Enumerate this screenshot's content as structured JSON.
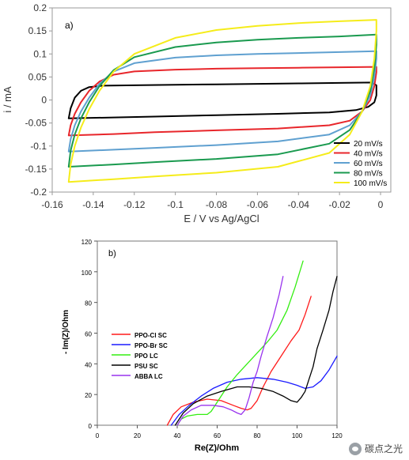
{
  "chart_data": [
    {
      "type": "line",
      "panel_label": "a)",
      "xlabel": "E / V vs Ag/AgCl",
      "ylabel": "i / mA",
      "xlim": [
        -0.16,
        0.005
      ],
      "ylim": [
        -0.2,
        0.2
      ],
      "xticks": [
        -0.16,
        -0.14,
        -0.12,
        -0.1,
        -0.08,
        -0.06,
        -0.04,
        -0.02,
        0
      ],
      "xtick_labels": [
        "-0.16",
        "-0.14",
        "-0.12",
        "-0.1",
        "-0.08",
        "-0.06",
        "-0.04",
        "-0.02",
        "0"
      ],
      "yticks": [
        0.2,
        0.15,
        0.1,
        0.05,
        0,
        -0.05,
        -0.1,
        -0.15,
        -0.2
      ],
      "ytick_labels": [
        "0.2",
        "0.15",
        "0.1",
        "0.05",
        "0",
        "-0.05",
        "-0.1",
        "-0.15",
        "-0.2"
      ],
      "grid": false,
      "legend_position": "bottom-right",
      "series": [
        {
          "name": "20 mV/s",
          "color": "#000000",
          "points": [
            [
              -0.152,
              -0.04
            ],
            [
              -0.151,
              -0.018
            ],
            [
              -0.149,
              0.005
            ],
            [
              -0.146,
              0.02
            ],
            [
              -0.142,
              0.028
            ],
            [
              -0.135,
              0.031
            ],
            [
              -0.12,
              0.032
            ],
            [
              -0.1,
              0.033
            ],
            [
              -0.08,
              0.034
            ],
            [
              -0.06,
              0.035
            ],
            [
              -0.04,
              0.036
            ],
            [
              -0.02,
              0.037
            ],
            [
              -0.004,
              0.038
            ],
            [
              -0.002,
              0.032
            ],
            [
              -0.002,
              0.01
            ],
            [
              -0.003,
              -0.005
            ],
            [
              -0.006,
              -0.015
            ],
            [
              -0.012,
              -0.022
            ],
            [
              -0.025,
              -0.027
            ],
            [
              -0.05,
              -0.03
            ],
            [
              -0.08,
              -0.033
            ],
            [
              -0.11,
              -0.036
            ],
            [
              -0.13,
              -0.038
            ],
            [
              -0.152,
              -0.04
            ]
          ]
        },
        {
          "name": "40 mV/s",
          "color": "#e8262b",
          "points": [
            [
              -0.152,
              -0.077
            ],
            [
              -0.151,
              -0.055
            ],
            [
              -0.149,
              -0.03
            ],
            [
              -0.146,
              -0.005
            ],
            [
              -0.142,
              0.02
            ],
            [
              -0.137,
              0.04
            ],
            [
              -0.13,
              0.055
            ],
            [
              -0.12,
              0.062
            ],
            [
              -0.1,
              0.066
            ],
            [
              -0.08,
              0.068
            ],
            [
              -0.06,
              0.069
            ],
            [
              -0.04,
              0.07
            ],
            [
              -0.02,
              0.071
            ],
            [
              -0.002,
              0.072
            ],
            [
              -0.002,
              0.06
            ],
            [
              -0.003,
              0.03
            ],
            [
              -0.005,
              0.0
            ],
            [
              -0.009,
              -0.025
            ],
            [
              -0.015,
              -0.045
            ],
            [
              -0.025,
              -0.055
            ],
            [
              -0.05,
              -0.062
            ],
            [
              -0.08,
              -0.066
            ],
            [
              -0.11,
              -0.07
            ],
            [
              -0.13,
              -0.074
            ],
            [
              -0.152,
              -0.077
            ]
          ]
        },
        {
          "name": "60 mV/s",
          "color": "#5fa0d0",
          "points": [
            [
              -0.152,
              -0.112
            ],
            [
              -0.151,
              -0.085
            ],
            [
              -0.149,
              -0.055
            ],
            [
              -0.146,
              -0.025
            ],
            [
              -0.142,
              0.005
            ],
            [
              -0.137,
              0.035
            ],
            [
              -0.13,
              0.062
            ],
            [
              -0.12,
              0.08
            ],
            [
              -0.1,
              0.092
            ],
            [
              -0.08,
              0.097
            ],
            [
              -0.06,
              0.1
            ],
            [
              -0.04,
              0.102
            ],
            [
              -0.02,
              0.104
            ],
            [
              -0.002,
              0.106
            ],
            [
              -0.002,
              0.09
            ],
            [
              -0.003,
              0.05
            ],
            [
              -0.005,
              0.01
            ],
            [
              -0.009,
              -0.025
            ],
            [
              -0.015,
              -0.055
            ],
            [
              -0.025,
              -0.075
            ],
            [
              -0.05,
              -0.09
            ],
            [
              -0.08,
              -0.098
            ],
            [
              -0.11,
              -0.104
            ],
            [
              -0.13,
              -0.108
            ],
            [
              -0.152,
              -0.112
            ]
          ]
        },
        {
          "name": "80 mV/s",
          "color": "#1a9a4f",
          "points": [
            [
              -0.152,
              -0.145
            ],
            [
              -0.151,
              -0.11
            ],
            [
              -0.149,
              -0.075
            ],
            [
              -0.146,
              -0.04
            ],
            [
              -0.142,
              -0.005
            ],
            [
              -0.137,
              0.03
            ],
            [
              -0.13,
              0.065
            ],
            [
              -0.12,
              0.093
            ],
            [
              -0.1,
              0.115
            ],
            [
              -0.08,
              0.125
            ],
            [
              -0.06,
              0.131
            ],
            [
              -0.04,
              0.135
            ],
            [
              -0.02,
              0.138
            ],
            [
              -0.002,
              0.142
            ],
            [
              -0.002,
              0.12
            ],
            [
              -0.003,
              0.07
            ],
            [
              -0.005,
              0.02
            ],
            [
              -0.009,
              -0.025
            ],
            [
              -0.015,
              -0.065
            ],
            [
              -0.025,
              -0.095
            ],
            [
              -0.05,
              -0.118
            ],
            [
              -0.08,
              -0.128
            ],
            [
              -0.11,
              -0.135
            ],
            [
              -0.13,
              -0.14
            ],
            [
              -0.152,
              -0.145
            ]
          ]
        },
        {
          "name": "100 mV/s",
          "color": "#f5ec1a",
          "points": [
            [
              -0.152,
              -0.178
            ],
            [
              -0.151,
              -0.14
            ],
            [
              -0.149,
              -0.1
            ],
            [
              -0.146,
              -0.06
            ],
            [
              -0.142,
              -0.02
            ],
            [
              -0.137,
              0.02
            ],
            [
              -0.13,
              0.062
            ],
            [
              -0.12,
              0.1
            ],
            [
              -0.1,
              0.135
            ],
            [
              -0.08,
              0.152
            ],
            [
              -0.06,
              0.161
            ],
            [
              -0.04,
              0.167
            ],
            [
              -0.02,
              0.171
            ],
            [
              -0.002,
              0.174
            ],
            [
              -0.002,
              0.15
            ],
            [
              -0.003,
              0.09
            ],
            [
              -0.005,
              0.03
            ],
            [
              -0.009,
              -0.025
            ],
            [
              -0.015,
              -0.075
            ],
            [
              -0.025,
              -0.115
            ],
            [
              -0.05,
              -0.145
            ],
            [
              -0.08,
              -0.158
            ],
            [
              -0.11,
              -0.166
            ],
            [
              -0.13,
              -0.172
            ],
            [
              -0.152,
              -0.178
            ]
          ]
        }
      ]
    },
    {
      "type": "line",
      "panel_label": "b)",
      "xlabel": "Re(Z)/Ohm",
      "ylabel": "- Im(Z)/Ohm",
      "xlim": [
        0,
        120
      ],
      "ylim": [
        0,
        120
      ],
      "xticks": [
        0,
        20,
        40,
        60,
        80,
        100,
        120
      ],
      "xtick_labels": [
        "0",
        "20",
        "40",
        "60",
        "80",
        "100",
        "120"
      ],
      "yticks": [
        0,
        20,
        40,
        60,
        80,
        100,
        120
      ],
      "ytick_labels": [
        "0",
        "20",
        "40",
        "60",
        "80",
        "100",
        "120"
      ],
      "grid": false,
      "legend_position": "middle-left",
      "series": [
        {
          "name": "PPO-Cl SC",
          "color": "#ff1a1a",
          "points": [
            [
              35,
              0
            ],
            [
              38,
              7
            ],
            [
              42,
              12
            ],
            [
              48,
              15
            ],
            [
              55,
              17
            ],
            [
              62,
              16
            ],
            [
              68,
              13
            ],
            [
              72,
              11
            ],
            [
              75,
              10
            ],
            [
              77,
              11
            ],
            [
              80,
              16
            ],
            [
              83,
              25
            ],
            [
              87,
              35
            ],
            [
              92,
              45
            ],
            [
              97,
              55
            ],
            [
              101,
              62
            ],
            [
              104,
              72
            ],
            [
              107,
              84
            ]
          ]
        },
        {
          "name": "PPO-Br SC",
          "color": "#1a1aff",
          "points": [
            [
              37,
              0
            ],
            [
              41,
              7
            ],
            [
              46,
              13
            ],
            [
              52,
              19
            ],
            [
              58,
              24
            ],
            [
              65,
              28
            ],
            [
              72,
              30
            ],
            [
              80,
              31
            ],
            [
              88,
              30
            ],
            [
              95,
              28
            ],
            [
              100,
              26
            ],
            [
              104,
              24
            ],
            [
              108,
              25
            ],
            [
              112,
              29
            ],
            [
              116,
              36
            ],
            [
              120,
              45
            ]
          ]
        },
        {
          "name": "PPO LC",
          "color": "#33ee11",
          "points": [
            [
              40,
              0
            ],
            [
              42,
              4
            ],
            [
              45,
              6
            ],
            [
              50,
              7
            ],
            [
              55,
              7
            ],
            [
              57,
              9
            ],
            [
              60,
              15
            ],
            [
              65,
              25
            ],
            [
              70,
              33
            ],
            [
              75,
              40
            ],
            [
              80,
              47
            ],
            [
              85,
              54
            ],
            [
              90,
              62
            ],
            [
              95,
              75
            ],
            [
              99,
              90
            ],
            [
              103,
              107
            ]
          ]
        },
        {
          "name": "PSU SC",
          "color": "#000000",
          "points": [
            [
              39,
              0
            ],
            [
              43,
              8
            ],
            [
              48,
              14
            ],
            [
              55,
              19
            ],
            [
              62,
              22
            ],
            [
              70,
              25
            ],
            [
              76,
              25
            ],
            [
              82,
              24
            ],
            [
              88,
              22
            ],
            [
              93,
              19
            ],
            [
              97,
              16
            ],
            [
              100,
              15
            ],
            [
              102,
              18
            ],
            [
              104,
              22
            ],
            [
              106,
              30
            ],
            [
              108,
              38
            ],
            [
              110,
              50
            ],
            [
              113,
              62
            ],
            [
              116,
              75
            ],
            [
              118,
              87
            ],
            [
              120,
              97
            ]
          ]
        },
        {
          "name": "ABBA LC",
          "color": "#9933ee",
          "points": [
            [
              40,
              0
            ],
            [
              43,
              6
            ],
            [
              47,
              10
            ],
            [
              52,
              13
            ],
            [
              58,
              13
            ],
            [
              63,
              12
            ],
            [
              67,
              10
            ],
            [
              70,
              8
            ],
            [
              72,
              7
            ],
            [
              74,
              10
            ],
            [
              76,
              18
            ],
            [
              78,
              28
            ],
            [
              80,
              35
            ],
            [
              82,
              45
            ],
            [
              85,
              58
            ],
            [
              88,
              70
            ],
            [
              91,
              85
            ],
            [
              93,
              97
            ]
          ]
        }
      ]
    }
  ],
  "watermark": {
    "text": "碳点之光",
    "icon": "wechat-icon"
  }
}
